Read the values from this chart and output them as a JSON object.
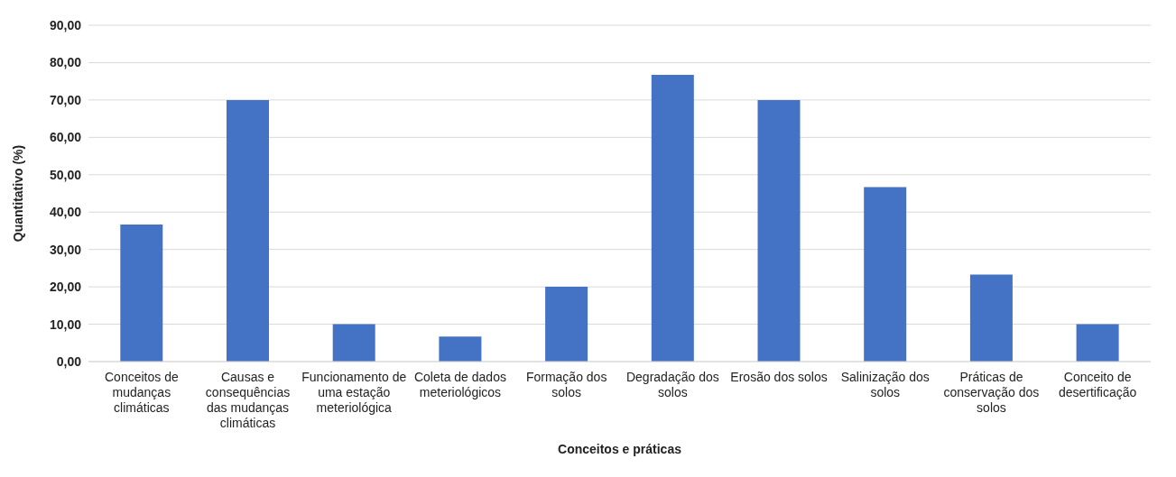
{
  "chart_data": {
    "type": "bar",
    "xlabel": "Conceitos e práticas",
    "ylabel": "Quantitativo (%)",
    "categories": [
      "Conceitos de mudanças climáticas",
      "Causas e consequências das mudanças climáticas",
      "Funcionamento de uma estação meteriológica",
      "Coleta de dados meteriológicos",
      "Formação dos solos",
      "Degradação dos solos",
      "Erosão dos solos",
      "Salinização dos solos",
      "Práticas de conservação dos solos",
      "Conceito de desertificação"
    ],
    "values": [
      36.7,
      70,
      10,
      6.7,
      20,
      76.7,
      70,
      46.7,
      23.3,
      10
    ],
    "color": "#4472c4",
    "ylim": [
      0,
      90
    ],
    "yticks": [
      {
        "value": 0,
        "label": "0,00"
      },
      {
        "value": 10,
        "label": "10,00"
      },
      {
        "value": 20,
        "label": "20,00"
      },
      {
        "value": 30,
        "label": "30,00"
      },
      {
        "value": 40,
        "label": "40,00"
      },
      {
        "value": 50,
        "label": "50,00"
      },
      {
        "value": 60,
        "label": "60,00"
      },
      {
        "value": 70,
        "label": "70,00"
      },
      {
        "value": 80,
        "label": "80,00"
      },
      {
        "value": 90,
        "label": "90,00"
      }
    ],
    "grid": "y",
    "legend": false
  }
}
